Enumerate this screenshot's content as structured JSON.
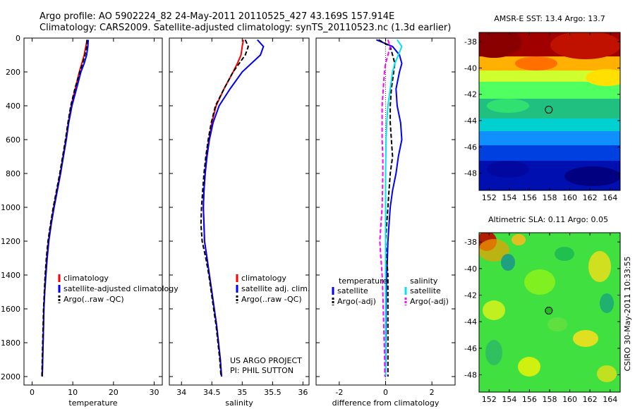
{
  "header": {
    "line1": "Argo profile: AO 5902224_82 24-May-2011 20110525_427 43.169S 157.914E",
    "line2": "Climatology: CARS2009. Satellite-adjusted climatology: synTS_20110523.nc (1.3d earlier)"
  },
  "side_label": "CSIRO 30-May-2011 10:33:55",
  "colors": {
    "climatology": "#ff0000",
    "satellite": "#0000ff",
    "argo": "#000000",
    "sal_satellite": "#00e5ee",
    "sal_argo": "#ff00ff"
  },
  "chart_data": [
    {
      "id": "temperature",
      "type": "line",
      "xlabel": "temperature",
      "xlim": [
        -2,
        32
      ],
      "xticks": [
        0,
        10,
        20,
        30
      ],
      "ylim": [
        0,
        2050
      ],
      "yticks": [
        0,
        200,
        400,
        600,
        800,
        1000,
        1200,
        1400,
        1600,
        1800,
        2000
      ],
      "y_reversed": true,
      "legend": [
        "climatology",
        "satellite-adjusted climatology",
        "Argo(..raw -QC)"
      ],
      "depth": [
        10,
        50,
        100,
        150,
        200,
        300,
        400,
        500,
        600,
        700,
        800,
        900,
        1000,
        1100,
        1200,
        1300,
        1400,
        1500,
        1600,
        1700,
        1800,
        1900,
        2000
      ],
      "series": [
        {
          "name": "climatology",
          "color": "#ff0000",
          "dash": "",
          "values": [
            13.5,
            13.2,
            12.8,
            12.2,
            11.6,
            10.6,
            9.6,
            8.9,
            8.3,
            7.6,
            6.9,
            6.1,
            5.3,
            4.6,
            4.0,
            3.6,
            3.3,
            3.1,
            2.9,
            2.8,
            2.7,
            2.6,
            2.5
          ]
        },
        {
          "name": "satellite-adjusted climatology",
          "color": "#0000ff",
          "dash": "",
          "values": [
            13.8,
            13.7,
            13.4,
            12.8,
            12.0,
            10.9,
            9.8,
            9.0,
            8.4,
            7.7,
            7.0,
            6.2,
            5.4,
            4.7,
            4.1,
            3.7,
            3.4,
            3.1,
            2.9,
            2.8,
            2.7,
            2.6,
            2.5
          ]
        },
        {
          "name": "Argo(..raw -QC)",
          "color": "#000000",
          "dash": "6,3",
          "values": [
            13.5,
            13.4,
            13.0,
            12.4,
            11.7,
            10.5,
            9.5,
            8.8,
            8.2,
            7.5,
            6.8,
            6.0,
            5.2,
            4.5,
            3.9,
            3.5,
            3.2,
            3.0,
            2.8,
            2.7,
            2.6,
            2.5,
            2.4
          ]
        }
      ]
    },
    {
      "id": "salinity",
      "type": "line",
      "xlabel": "salinity",
      "xlim": [
        33.8,
        36.1
      ],
      "xticks": [
        34,
        34.5,
        35,
        35.5,
        36
      ],
      "ylim": [
        0,
        2050
      ],
      "yticks": [
        0,
        200,
        400,
        600,
        800,
        1000,
        1200,
        1400,
        1600,
        1800,
        2000
      ],
      "y_reversed": true,
      "legend": [
        "climatology",
        "satellite adj. clim.",
        "Argo(..raw -QC)"
      ],
      "annotation": [
        "US ARGO PROJECT",
        "PI: PHIL SUTTON"
      ],
      "depth": [
        10,
        50,
        100,
        150,
        200,
        300,
        400,
        500,
        600,
        700,
        800,
        900,
        1000,
        1100,
        1200,
        1300,
        1400,
        1500,
        1600,
        1700,
        1800,
        1900,
        2000
      ],
      "series": [
        {
          "name": "climatology",
          "color": "#ff0000",
          "dash": "",
          "values": [
            35.02,
            35.0,
            34.98,
            34.92,
            34.85,
            34.7,
            34.57,
            34.5,
            34.45,
            34.41,
            34.39,
            34.37,
            34.36,
            34.37,
            34.38,
            34.42,
            34.46,
            34.5,
            34.54,
            34.58,
            34.61,
            34.64,
            34.66
          ]
        },
        {
          "name": "satellite adj. clim.",
          "color": "#0000ff",
          "dash": "",
          "values": [
            35.25,
            35.35,
            35.3,
            35.15,
            35.0,
            34.8,
            34.62,
            34.52,
            34.46,
            34.42,
            34.39,
            34.37,
            34.36,
            34.37,
            34.38,
            34.42,
            34.46,
            34.5,
            34.54,
            34.58,
            34.61,
            34.64,
            34.66
          ]
        },
        {
          "name": "Argo(..raw -QC)",
          "color": "#000000",
          "dash": "6,3",
          "values": [
            35.05,
            35.1,
            35.05,
            34.95,
            34.85,
            34.7,
            34.56,
            34.49,
            34.44,
            34.4,
            34.37,
            34.35,
            34.33,
            34.32,
            34.34,
            34.4,
            34.45,
            34.49,
            34.53,
            34.57,
            34.6,
            34.63,
            34.65
          ]
        }
      ]
    },
    {
      "id": "difference",
      "type": "line",
      "xlabel": "difference from climatology",
      "xlim": [
        -3,
        3
      ],
      "xticks": [
        -2,
        0,
        2
      ],
      "ylim": [
        0,
        2050
      ],
      "yticks": [
        0,
        200,
        400,
        600,
        800,
        1000,
        1200,
        1400,
        1600,
        1800,
        2000
      ],
      "y_reversed": true,
      "legend_headers": [
        "temperature",
        "salinity"
      ],
      "legend": [
        "satellite",
        "Argo(-adj)",
        "satellite",
        "Argo(-adj)"
      ],
      "depth": [
        10,
        50,
        100,
        150,
        200,
        300,
        400,
        500,
        600,
        700,
        800,
        900,
        1000,
        1100,
        1200,
        1300,
        1400,
        1500,
        1600,
        1700,
        1800,
        1900,
        2000
      ],
      "series": [
        {
          "name": "satellite",
          "group": "temperature",
          "color": "#0000ff",
          "dash": "",
          "values": [
            -0.4,
            0.3,
            0.6,
            0.7,
            0.6,
            0.45,
            0.5,
            0.65,
            0.7,
            0.55,
            0.45,
            0.3,
            0.2,
            0.15,
            0.1,
            0.08,
            0.05,
            0.03,
            0.02,
            0.02,
            0.01,
            0.01,
            0.0
          ]
        },
        {
          "name": "Argo(-adj)",
          "group": "temperature",
          "color": "#000000",
          "dash": "6,3",
          "values": [
            -0.3,
            0.2,
            0.3,
            0.4,
            0.35,
            0.25,
            0.2,
            0.2,
            0.25,
            0.3,
            0.2,
            0.15,
            0.1,
            0.05,
            0.0,
            0.05,
            0.1,
            0.1,
            0.1,
            0.1,
            0.1,
            0.1,
            0.1
          ]
        },
        {
          "name": "satellite",
          "group": "salinity",
          "color": "#00e5ee",
          "dash": "",
          "values": [
            0.5,
            0.7,
            0.55,
            0.4,
            0.3,
            0.2,
            0.1,
            0.05,
            0.02,
            0.01,
            0.0,
            0.0,
            0.0,
            0.0,
            0.0,
            0.0,
            0.0,
            0.0,
            0.0,
            0.0,
            0.0,
            0.0,
            0.0
          ]
        },
        {
          "name": "Argo(-adj)",
          "group": "salinity",
          "color": "#ff00ff",
          "dash": "6,3",
          "values": [
            0.1,
            0.2,
            0.1,
            0.0,
            -0.05,
            -0.1,
            -0.15,
            -0.15,
            -0.15,
            -0.12,
            -0.12,
            -0.13,
            -0.15,
            -0.2,
            -0.25,
            -0.2,
            -0.15,
            -0.12,
            -0.1,
            -0.08,
            -0.06,
            -0.04,
            -0.03
          ]
        }
      ]
    },
    {
      "id": "sst_map",
      "type": "heatmap",
      "title": "AMSR-E SST: 13.4 Argo: 13.7",
      "xlim": [
        151,
        165
      ],
      "ylim": [
        -49.3,
        -37.3
      ],
      "xticks": [
        152,
        154,
        156,
        158,
        160,
        162,
        164
      ],
      "yticks": [
        -38,
        -40,
        -42,
        -44,
        -46,
        -48
      ],
      "marker": [
        157.914,
        -43.169
      ],
      "marker_fill": "none"
    },
    {
      "id": "sla_map",
      "type": "heatmap",
      "title": "Altimetric SLA: 0.11 Argo: 0.05",
      "xlim": [
        151,
        165
      ],
      "ylim": [
        -49.3,
        -37.3
      ],
      "xticks": [
        152,
        154,
        156,
        158,
        160,
        162,
        164
      ],
      "yticks": [
        -38,
        -40,
        -42,
        -44,
        -46,
        -48
      ],
      "marker": [
        157.914,
        -43.169
      ],
      "marker_fill": "#22bb22"
    }
  ]
}
